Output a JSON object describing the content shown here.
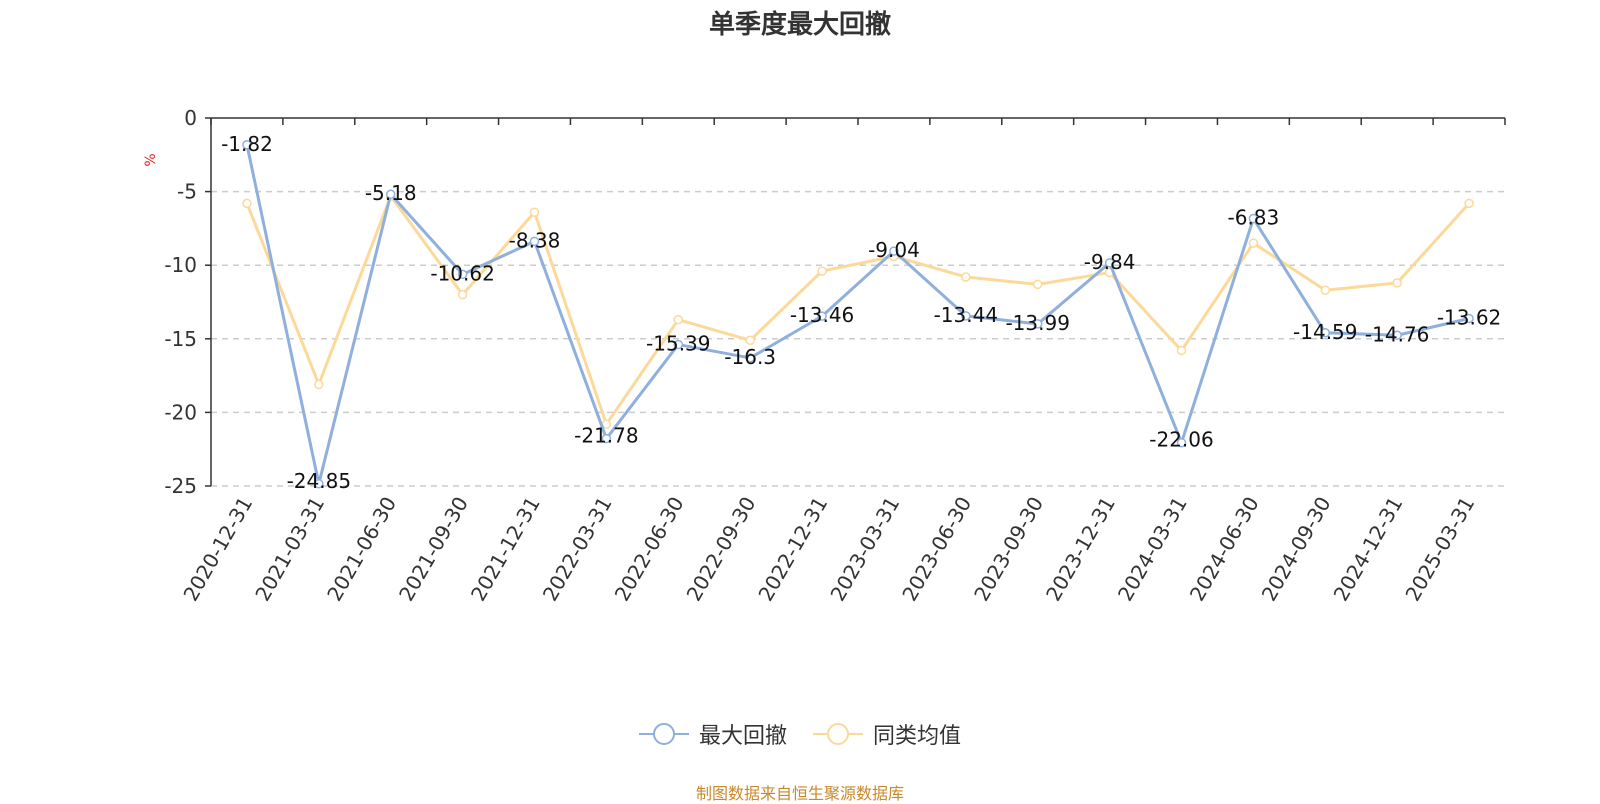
{
  "chart_data": {
    "type": "line",
    "title": "单季度最大回撤",
    "ylabel": "%",
    "xlabel": "",
    "ylim": [
      -25,
      0
    ],
    "yticks": [
      0,
      -5,
      -10,
      -15,
      -20,
      -25
    ],
    "grid": true,
    "legend_position": "bottom",
    "categories": [
      "2020-12-31",
      "2021-03-31",
      "2021-06-30",
      "2021-09-30",
      "2021-12-31",
      "2022-03-31",
      "2022-06-30",
      "2022-09-30",
      "2022-12-31",
      "2023-03-31",
      "2023-06-30",
      "2023-09-30",
      "2023-12-31",
      "2024-03-31",
      "2024-06-30",
      "2024-09-30",
      "2024-12-31",
      "2025-03-31"
    ],
    "series": [
      {
        "name": "最大回撤",
        "color": "#8fb0dd",
        "values": [
          -1.82,
          -24.85,
          -5.18,
          -10.62,
          -8.38,
          -21.78,
          -15.39,
          -16.3,
          -13.46,
          -9.04,
          -13.44,
          -13.99,
          -9.84,
          -22.06,
          -6.83,
          -14.59,
          -14.76,
          -13.62
        ],
        "labels": [
          "-1.82",
          "-24.85",
          "-5.18",
          "-10.62",
          "-8.38",
          "-21.78",
          "-15.39",
          "-16.3",
          "-13.46",
          "-9.04",
          "-13.44",
          "-13.99",
          "-9.84",
          "-22.06",
          "-6.83",
          "-14.59",
          "-14.76",
          "-13.62"
        ]
      },
      {
        "name": "同类均值",
        "color": "#fcd999",
        "values": [
          -5.8,
          -18.1,
          -5.3,
          -12.0,
          -6.4,
          -20.8,
          -13.7,
          -15.1,
          -10.4,
          -9.4,
          -10.8,
          -11.3,
          -10.5,
          -15.8,
          -8.5,
          -11.7,
          -11.2,
          -5.8
        ]
      }
    ],
    "source_note": "制图数据来自恒生聚源数据库"
  }
}
